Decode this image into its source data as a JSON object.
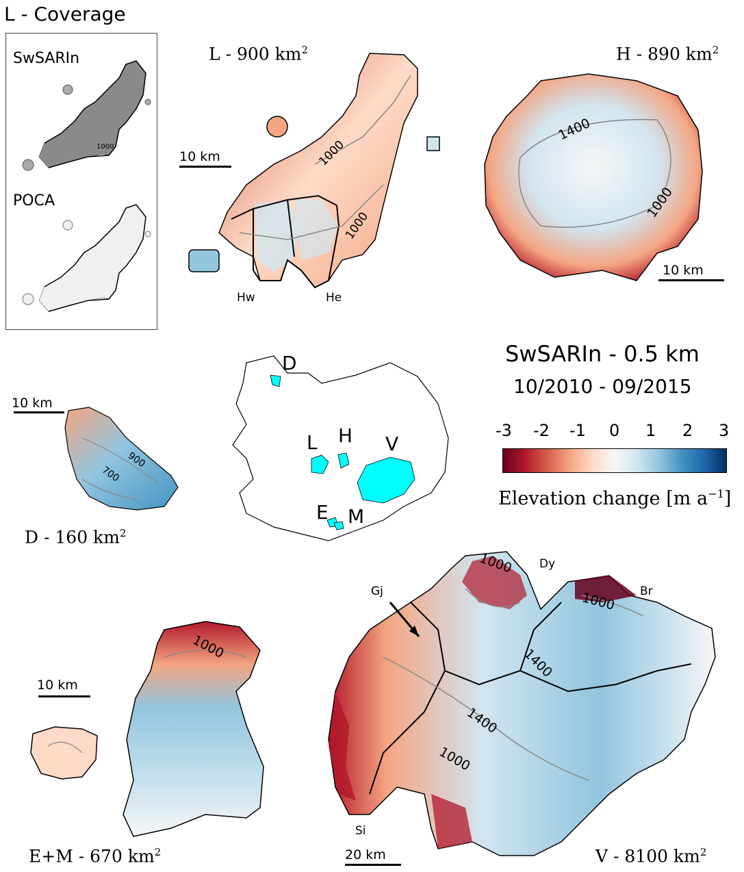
{
  "coverage": {
    "title": "L - Coverage",
    "swsarin_label": "SwSARIn",
    "poca_label": "POCA",
    "contour_label": "1000"
  },
  "panels": {
    "L": {
      "title_prefix": "L - 900 km",
      "title_sup": "2",
      "scalebar": "10 km",
      "labels": [
        "Hw",
        "He"
      ],
      "contours": [
        "1000",
        "1000"
      ]
    },
    "H": {
      "title_prefix": "H - 890 km",
      "title_sup": "2",
      "scalebar": "10 km",
      "contours": [
        "1400",
        "1000"
      ]
    },
    "D": {
      "title_prefix": "D - 160 km",
      "title_sup": "2",
      "scalebar": "10 km",
      "contours": [
        "900",
        "700"
      ]
    },
    "EM": {
      "title_prefix": "E+M - 670 km",
      "title_sup": "2",
      "scalebar": "10 km",
      "contours": [
        "1000"
      ]
    },
    "V": {
      "title_prefix": "V - 8100 km",
      "title_sup": "2",
      "scalebar": "20 km",
      "labels": [
        "Dy",
        "Gj",
        "Br",
        "Si"
      ],
      "contours": [
        "1000",
        "1000",
        "1400",
        "1400",
        "1000"
      ]
    }
  },
  "overview": {
    "labels": [
      "D",
      "L",
      "H",
      "V",
      "E",
      "M"
    ],
    "glacier_color": "#00ffff"
  },
  "legend": {
    "title": "SwSARIn - 0.5 km",
    "period": "10/2010 - 09/2015",
    "ticks": [
      "-3",
      "-2",
      "-1",
      "0",
      "1",
      "2",
      "3"
    ],
    "range": [
      -3,
      3
    ],
    "colorbar_label_prefix": "Elevation change [m a",
    "colorbar_label_sup": "−1",
    "colorbar_label_suffix": "]",
    "colormap": [
      "#67001f",
      "#b2182b",
      "#d6604d",
      "#f4a582",
      "#fddbc7",
      "#f7f7f7",
      "#d1e5f0",
      "#92c5de",
      "#4393c3",
      "#2166ac",
      "#053061"
    ]
  }
}
